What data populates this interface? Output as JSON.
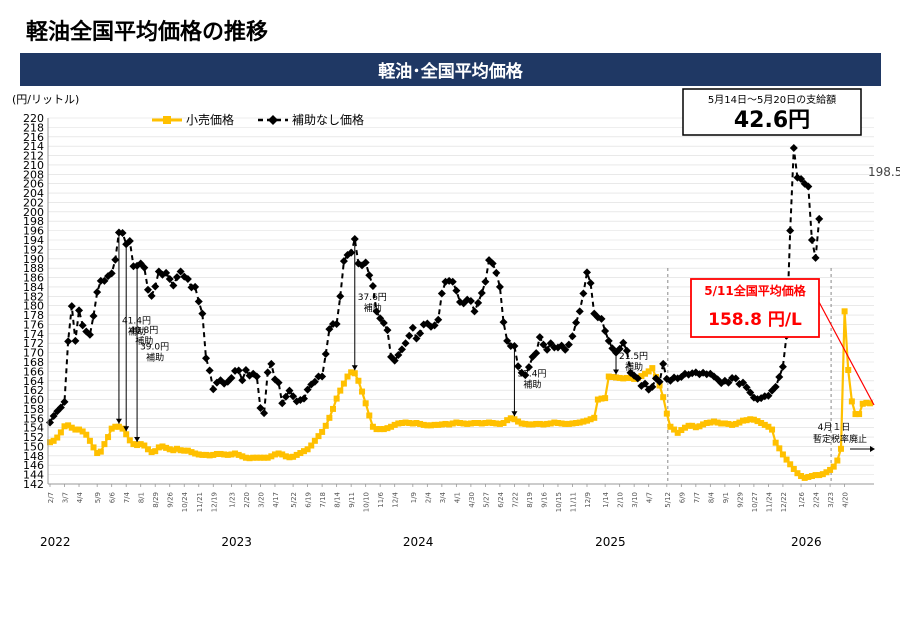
{
  "page": {
    "title": "軽油全国平均価格の推移",
    "banner": "軽油･全国平均価格"
  },
  "colors": {
    "banner_bg": "#1f3864",
    "retail": "#ffc000",
    "no_subsidy": "#000000",
    "highlight": "#ff0000"
  },
  "chart_data": {
    "type": "line",
    "unit_label": "(円/リットル)",
    "ylim": [
      142,
      220
    ],
    "y_ticks": [
      142,
      144,
      146,
      148,
      150,
      152,
      154,
      156,
      158,
      160,
      162,
      164,
      166,
      168,
      170,
      172,
      174,
      176,
      178,
      180,
      182,
      184,
      186,
      188,
      190,
      192,
      194,
      196,
      198,
      200,
      202,
      204,
      206,
      208,
      210,
      212,
      214,
      216,
      218,
      220
    ],
    "x_ticks": [
      {
        "label": "2/7",
        "i": 0
      },
      {
        "label": "3/7",
        "i": 4
      },
      {
        "label": "4/4",
        "i": 8
      },
      {
        "label": "5/9",
        "i": 13
      },
      {
        "label": "6/6",
        "i": 17
      },
      {
        "label": "7/4",
        "i": 21
      },
      {
        "label": "8/1",
        "i": 25
      },
      {
        "label": "8/29",
        "i": 29
      },
      {
        "label": "9/26",
        "i": 33
      },
      {
        "label": "10/24",
        "i": 37
      },
      {
        "label": "11/21",
        "i": 41
      },
      {
        "label": "12/19",
        "i": 45
      },
      {
        "label": "1/23",
        "i": 50
      },
      {
        "label": "2/20",
        "i": 54
      },
      {
        "label": "3/20",
        "i": 58
      },
      {
        "label": "4/17",
        "i": 62
      },
      {
        "label": "5/22",
        "i": 67
      },
      {
        "label": "6/19",
        "i": 71
      },
      {
        "label": "7/18",
        "i": 75
      },
      {
        "label": "8/14",
        "i": 79
      },
      {
        "label": "9/11",
        "i": 83
      },
      {
        "label": "10/10",
        "i": 87
      },
      {
        "label": "11/6",
        "i": 91
      },
      {
        "label": "12/4",
        "i": 95
      },
      {
        "label": "1/9",
        "i": 100
      },
      {
        "label": "2/4",
        "i": 104
      },
      {
        "label": "3/4",
        "i": 108
      },
      {
        "label": "4/1",
        "i": 112
      },
      {
        "label": "4/30",
        "i": 116
      },
      {
        "label": "5/27",
        "i": 120
      },
      {
        "label": "6/24",
        "i": 124
      },
      {
        "label": "7/22",
        "i": 128
      },
      {
        "label": "8/19",
        "i": 132
      },
      {
        "label": "9/16",
        "i": 136
      },
      {
        "label": "10/15",
        "i": 140
      },
      {
        "label": "11/11",
        "i": 144
      },
      {
        "label": "12/9",
        "i": 148
      },
      {
        "label": "1/14",
        "i": 153
      },
      {
        "label": "2/10",
        "i": 157
      },
      {
        "label": "3/10",
        "i": 161
      },
      {
        "label": "4/7",
        "i": 165
      },
      {
        "label": "5/12",
        "i": 170
      },
      {
        "label": "6/9",
        "i": 174
      },
      {
        "label": "7/7",
        "i": 178
      },
      {
        "label": "8/4",
        "i": 182
      },
      {
        "label": "9/1",
        "i": 186
      },
      {
        "label": "9/29",
        "i": 190
      },
      {
        "label": "10/27",
        "i": 194
      },
      {
        "label": "11/24",
        "i": 198
      },
      {
        "label": "12/22",
        "i": 202
      },
      {
        "label": "1/26",
        "i": 207
      },
      {
        "label": "2/24",
        "i": 211
      },
      {
        "label": "3/23",
        "i": 215
      },
      {
        "label": "4/20",
        "i": 219
      }
    ],
    "years": [
      {
        "label": "2022",
        "i": 0
      },
      {
        "label": "2023",
        "i": 50
      },
      {
        "label": "2024",
        "i": 100
      },
      {
        "label": "2025",
        "i": 153
      },
      {
        "label": "2026",
        "i": 207
      }
    ],
    "series": [
      {
        "name": "小売価格",
        "color": "#ffc000",
        "values": [
          150.9,
          151.2,
          151.9,
          153.0,
          154.3,
          154.5,
          154.0,
          153.6,
          153.6,
          153.2,
          152.5,
          151.2,
          149.8,
          148.6,
          148.9,
          150.5,
          152.0,
          153.8,
          154.2,
          154.2,
          153.8,
          152.6,
          151.3,
          150.5,
          150.3,
          150.5,
          150.2,
          149.4,
          148.8,
          149.0,
          149.8,
          150.0,
          149.7,
          149.4,
          149.2,
          149.5,
          149.2,
          149.1,
          149.1,
          148.8,
          148.5,
          148.3,
          148.2,
          148.2,
          148.1,
          148.2,
          148.4,
          148.4,
          148.3,
          148.2,
          148.3,
          148.5,
          148.2,
          147.9,
          147.6,
          147.5,
          147.6,
          147.6,
          147.6,
          147.6,
          147.6,
          147.9,
          148.3,
          148.5,
          148.3,
          147.9,
          147.7,
          147.8,
          148.2,
          148.6,
          149.0,
          149.4,
          150.2,
          151.2,
          152.2,
          153.1,
          154.4,
          156.1,
          158.0,
          160.2,
          161.9,
          163.4,
          164.9,
          165.8,
          165.6,
          164.0,
          161.7,
          159.2,
          156.6,
          154.2,
          153.7,
          153.7,
          153.7,
          153.9,
          154.2,
          154.6,
          154.9,
          155.0,
          155.1,
          155.0,
          154.9,
          155.0,
          154.8,
          154.6,
          154.5,
          154.5,
          154.6,
          154.6,
          154.7,
          154.8,
          154.7,
          154.9,
          155.1,
          155.0,
          154.9,
          154.8,
          154.9,
          155.0,
          155.0,
          154.9,
          155.0,
          155.1,
          155.0,
          154.9,
          154.8,
          155.0,
          155.6,
          156.0,
          155.8,
          155.3,
          154.9,
          154.8,
          154.7,
          154.7,
          154.8,
          154.8,
          154.7,
          154.8,
          154.9,
          155.1,
          155.0,
          154.9,
          154.8,
          154.8,
          154.9,
          155.0,
          155.1,
          155.3,
          155.5,
          155.8,
          156.1,
          160.0,
          160.2,
          160.3,
          164.9,
          164.8,
          164.7,
          164.6,
          164.5,
          164.6,
          164.6,
          164.4,
          164.6,
          165.0,
          165.5,
          166.0,
          166.7,
          164.8,
          163.0,
          160.5,
          157.0,
          154.2,
          153.6,
          152.9,
          153.5,
          154.0,
          154.4,
          154.4,
          154.1,
          154.3,
          154.7,
          155.0,
          155.1,
          155.3,
          155.1,
          154.9,
          154.9,
          154.8,
          154.6,
          154.8,
          155.1,
          155.5,
          155.6,
          155.8,
          155.7,
          155.4,
          155.0,
          154.6,
          154.2,
          153.6,
          150.8,
          149.6,
          148.3,
          147.2,
          146.2,
          145.2,
          144.3,
          143.7,
          143.3,
          143.5,
          143.7,
          143.9,
          143.9,
          144.1,
          144.5,
          145.0,
          145.7,
          147.0,
          149.5,
          178.8,
          166.3,
          159.6,
          156.9,
          156.9,
          159.1,
          159.3,
          159.2
        ]
      },
      {
        "name": "補助なし価格",
        "color": "#000000",
        "values": [
          155.1,
          156.5,
          157.5,
          158.3,
          159.5,
          172.4,
          179.9,
          172.5,
          179.0,
          175.8,
          174.5,
          173.8,
          177.8,
          182.9,
          185.3,
          185.3,
          186.3,
          186.9,
          189.8,
          195.6,
          195.5,
          193.1,
          193.8,
          188.4,
          188.5,
          189.0,
          188.1,
          183.4,
          182.1,
          184.1,
          187.3,
          186.6,
          187.0,
          185.7,
          184.3,
          186.1,
          187.3,
          186.2,
          185.7,
          183.9,
          184.0,
          180.9,
          178.3,
          168.8,
          166.2,
          162.2,
          163.6,
          164.1,
          163.4,
          163.8,
          164.6,
          166.1,
          166.2,
          164.1,
          166.3,
          165.1,
          165.5,
          164.9,
          158.2,
          157.1,
          165.8,
          167.6,
          164.3,
          163.6,
          159.2,
          160.6,
          161.9,
          160.7,
          159.6,
          159.9,
          160.2,
          162.1,
          163.2,
          163.8,
          164.9,
          164.9,
          169.7,
          175.0,
          176.1,
          176.1,
          182.0,
          189.5,
          190.8,
          191.3,
          194.2,
          189.0,
          188.6,
          189.2,
          186.5,
          184.2,
          178.8,
          177.3,
          176.3,
          174.8,
          169.1,
          168.3,
          169.5,
          170.7,
          172.0,
          173.6,
          175.3,
          173.0,
          174.1,
          176.0,
          176.2,
          175.5,
          175.8,
          177.0,
          182.6,
          185.1,
          185.3,
          185.1,
          183.2,
          180.8,
          180.5,
          181.3,
          181.0,
          178.8,
          180.6,
          182.7,
          185.1,
          189.7,
          189.0,
          187.0,
          184.0,
          176.5,
          172.5,
          171.4,
          171.4,
          167.1,
          165.7,
          165.2,
          166.9,
          169.1,
          169.9,
          173.3,
          171.7,
          170.6,
          172.0,
          171.1,
          171.1,
          171.5,
          170.6,
          171.7,
          173.5,
          176.4,
          178.8,
          182.6,
          187.1,
          184.8,
          178.3,
          177.5,
          177.2,
          174.6,
          172.5,
          170.9,
          170.0,
          170.8,
          172.1,
          170.4,
          165.7,
          165.1,
          164.5,
          162.9,
          163.4,
          162.1,
          162.7,
          164.5,
          163.8,
          167.6,
          164.4,
          164.0,
          164.7,
          164.5,
          164.8,
          165.5,
          165.3,
          165.6,
          165.8,
          165.4,
          165.7,
          165.4,
          165.5,
          164.9,
          164.3,
          163.5,
          164.0,
          163.6,
          164.6,
          164.5,
          163.3,
          163.6,
          162.6,
          161.5,
          160.4,
          160.1,
          160.3,
          160.7,
          160.8,
          161.9,
          162.7,
          164.8,
          167.0,
          173.6,
          196.0,
          213.6,
          207.3,
          207.0,
          206.0,
          205.4,
          194.0,
          190.2,
          198.5
        ]
      }
    ],
    "annotations": [
      {
        "label": "41.4円",
        "sub": "補助",
        "i": 19
      },
      {
        "label": "40.8円",
        "sub": "補助",
        "i": 21
      },
      {
        "label": "39.0円",
        "sub": "補助",
        "i": 24
      },
      {
        "label": "37.6円",
        "sub": "補助",
        "i": 84
      },
      {
        "label": "33.4円",
        "sub": "補助",
        "i": 128
      },
      {
        "label": "21.5円",
        "sub": "補助",
        "i": 156
      }
    ],
    "end_label": "198.5",
    "dashed_markers": [
      170,
      215
    ]
  },
  "callouts": {
    "weekly_subsidy": {
      "period": "5月14日～5月20日の支給額",
      "amount": "42.6円"
    },
    "national_average": {
      "title": "5/11全国平均価格",
      "value": "158.8 円/L"
    },
    "tax_repeal": {
      "date": "4月１日",
      "text": "暫定税率廃止"
    }
  }
}
